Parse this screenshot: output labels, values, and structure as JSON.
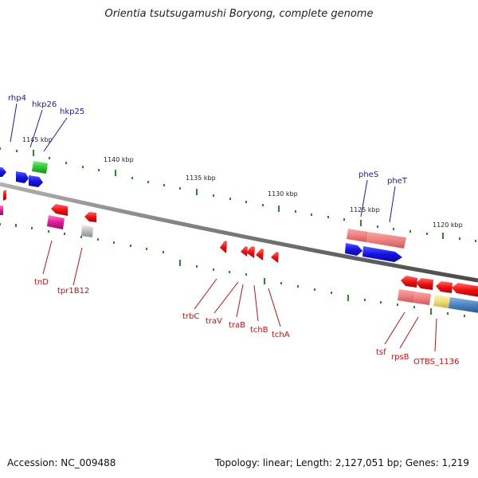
{
  "title": "Orientia tsutsugamushi Boryong, complete genome",
  "footer": {
    "accession": "Accession: NC_009488",
    "topology": "Topology: linear; Length: 2,127,051 bp; Genes: 1,219"
  },
  "scale_labels": [
    "1145 kbp",
    "1140 kbp",
    "1135 kbp",
    "1130 kbp",
    "1125 kbp",
    "1120 kbp"
  ],
  "gene_labels": {
    "top": [
      "rhp4",
      "hkp26",
      "hkp25",
      "pheS",
      "pheT"
    ],
    "bottom": [
      "tnD",
      "tpr1B12",
      "trbC",
      "traV",
      "traB",
      "tchB",
      "tchA",
      "tsf",
      "rpsB",
      "OTBS_1136"
    ]
  },
  "colors": {
    "backbone": "#7a7a7a",
    "tick": "#2a8a2a",
    "forward_gene": "#1010e0",
    "reverse_gene": "#e01010",
    "top_label": "#1a1aa8",
    "bottom_label": "#c01010"
  }
}
